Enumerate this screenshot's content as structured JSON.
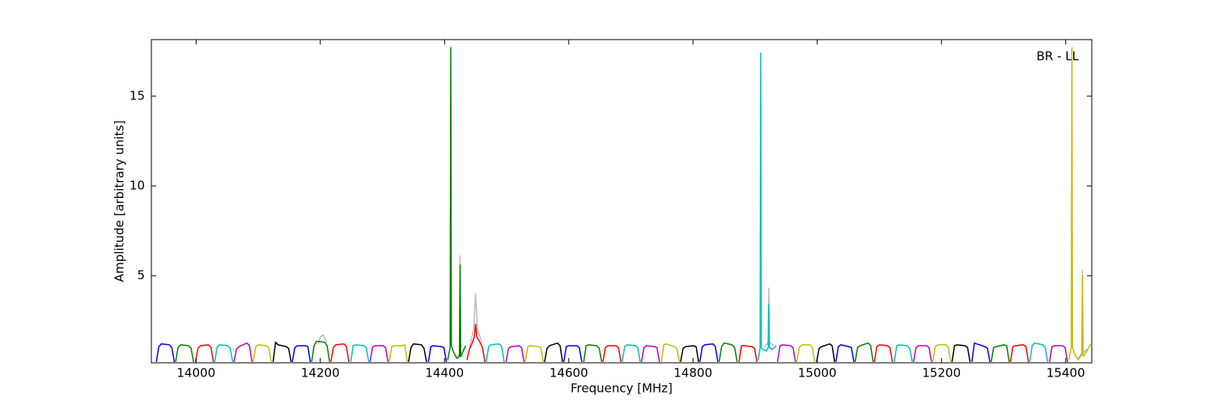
{
  "chart_data": {
    "type": "line",
    "xlabel": "Frequency [MHz]",
    "ylabel": "Amplitude [arbitrary units]",
    "annotation": "BR - LL",
    "xlim": [
      13928,
      15442
    ],
    "xticks": [
      14000,
      14200,
      14400,
      14600,
      14800,
      15000,
      15200,
      15400
    ],
    "ylim": [
      0.15,
      18.15
    ],
    "yticks": [
      5,
      10,
      15
    ],
    "grid": false,
    "series": [
      {
        "color": "#bbbbbb",
        "x": [
          14420,
          14424,
          14425,
          14426,
          14430
        ],
        "values": [
          0.5,
          0.6,
          6.1,
          0.6,
          0.5
        ]
      },
      {
        "color": "#bbbbbb",
        "x": [
          14440,
          14447,
          14450,
          14453,
          14460
        ],
        "values": [
          1.0,
          2.0,
          4.0,
          2.0,
          1.3
        ]
      },
      {
        "color": "#bbbbbb",
        "x": [
          14915,
          14921,
          14922,
          14923,
          14930
        ],
        "values": [
          1.0,
          1.3,
          4.3,
          1.3,
          1.1
        ]
      },
      {
        "color": "#bbbbbb",
        "x": [
          15420,
          15426,
          15427,
          15428,
          15434
        ],
        "values": [
          0.4,
          0.7,
          5.3,
          0.7,
          0.9
        ]
      },
      {
        "color": "#bbbbbb",
        "x": [
          14197,
          14200,
          14205,
          14210
        ],
        "values": [
          1.2,
          1.6,
          1.7,
          1.3
        ]
      },
      {
        "color": "#0000ff",
        "x": [
          13936,
          13940,
          13944,
          13957,
          13961,
          13965
        ],
        "values": [
          0.2,
          1.05,
          1.2,
          1.15,
          1.0,
          0.2
        ]
      },
      {
        "color": "#008000",
        "x": [
          13967,
          13971,
          13975,
          13988,
          13992,
          13996
        ],
        "values": [
          0.2,
          1.0,
          1.15,
          1.1,
          0.95,
          0.2
        ]
      },
      {
        "color": "#ff0000",
        "x": [
          13999,
          14003,
          14007,
          14020,
          14024,
          14028
        ],
        "values": [
          0.2,
          0.95,
          1.1,
          1.15,
          1.0,
          0.2
        ]
      },
      {
        "color": "#00bfbf",
        "x": [
          14030,
          14034,
          14038,
          14051,
          14055,
          14059
        ],
        "values": [
          0.2,
          1.05,
          1.15,
          1.1,
          0.95,
          0.2
        ]
      },
      {
        "color": "#bf00bf",
        "x": [
          14061,
          14065,
          14069,
          14082,
          14086,
          14090
        ],
        "values": [
          0.2,
          0.9,
          1.05,
          1.25,
          1.1,
          0.2
        ]
      },
      {
        "color": "#bfbf00",
        "x": [
          14092,
          14096,
          14100,
          14113,
          14117,
          14121
        ],
        "values": [
          0.2,
          1.05,
          1.15,
          1.1,
          1.0,
          0.2
        ]
      },
      {
        "color": "#000000",
        "x": [
          14124,
          14128,
          14132,
          14145,
          14149,
          14153
        ],
        "values": [
          0.2,
          1.3,
          1.15,
          1.05,
          0.95,
          0.2
        ]
      },
      {
        "color": "#0000ff",
        "x": [
          14155,
          14159,
          14163,
          14176,
          14180,
          14184
        ],
        "values": [
          0.2,
          1.0,
          1.1,
          1.1,
          1.05,
          0.2
        ]
      },
      {
        "color": "#008000",
        "x": [
          14186,
          14190,
          14194,
          14207,
          14211,
          14215
        ],
        "values": [
          0.2,
          1.1,
          1.35,
          1.3,
          1.1,
          0.2
        ]
      },
      {
        "color": "#ff0000",
        "x": [
          14217,
          14221,
          14225,
          14238,
          14242,
          14246
        ],
        "values": [
          0.2,
          1.0,
          1.15,
          1.2,
          1.05,
          0.2
        ]
      },
      {
        "color": "#00bfbf",
        "x": [
          14249,
          14253,
          14257,
          14270,
          14274,
          14278
        ],
        "values": [
          0.2,
          1.1,
          1.15,
          1.1,
          1.0,
          0.2
        ]
      },
      {
        "color": "#bf00bf",
        "x": [
          14280,
          14284,
          14288,
          14301,
          14305,
          14309
        ],
        "values": [
          0.2,
          1.0,
          1.1,
          1.1,
          1.0,
          0.2
        ]
      },
      {
        "color": "#bfbf00",
        "x": [
          14311,
          14315,
          14319,
          14332,
          14336,
          14340
        ],
        "values": [
          0.2,
          1.05,
          1.1,
          1.1,
          1.15,
          0.2
        ]
      },
      {
        "color": "#000000",
        "x": [
          14342,
          14346,
          14350,
          14363,
          14367,
          14371
        ],
        "values": [
          0.2,
          1.0,
          1.2,
          1.15,
          0.95,
          0.2
        ]
      },
      {
        "color": "#0000ff",
        "x": [
          14374,
          14378,
          14382,
          14395,
          14399,
          14403
        ],
        "values": [
          0.2,
          1.05,
          1.1,
          1.05,
          1.0,
          0.2
        ]
      },
      {
        "color": "#008000",
        "x": [
          14405,
          14409,
          14410,
          14411,
          14415,
          14420,
          14424,
          14425,
          14426,
          14430,
          14434
        ],
        "values": [
          0.3,
          1.0,
          17.7,
          1.1,
          0.7,
          0.4,
          0.5,
          5.6,
          0.5,
          0.8,
          1.1
        ]
      },
      {
        "color": "#ff0000",
        "x": [
          14436,
          14440,
          14444,
          14448,
          14450,
          14452,
          14457,
          14461,
          14465
        ],
        "values": [
          0.3,
          0.9,
          1.2,
          1.6,
          2.3,
          1.6,
          1.3,
          1.0,
          0.2
        ]
      },
      {
        "color": "#00bfbf",
        "x": [
          14467,
          14471,
          14475,
          14488,
          14492,
          14496
        ],
        "values": [
          0.2,
          1.05,
          1.15,
          1.2,
          1.05,
          0.2
        ]
      },
      {
        "color": "#bf00bf",
        "x": [
          14499,
          14503,
          14507,
          14520,
          14524,
          14528
        ],
        "values": [
          0.2,
          0.95,
          1.05,
          1.1,
          1.0,
          0.2
        ]
      },
      {
        "color": "#bfbf00",
        "x": [
          14530,
          14534,
          14538,
          14551,
          14555,
          14559
        ],
        "values": [
          0.2,
          1.05,
          1.1,
          1.05,
          1.0,
          0.2
        ]
      },
      {
        "color": "#000000",
        "x": [
          14561,
          14565,
          14569,
          14582,
          14586,
          14590
        ],
        "values": [
          0.2,
          0.95,
          1.1,
          1.25,
          1.1,
          0.2
        ]
      },
      {
        "color": "#0000ff",
        "x": [
          14592,
          14596,
          14600,
          14613,
          14617,
          14621
        ],
        "values": [
          0.2,
          1.05,
          1.1,
          1.1,
          1.0,
          0.2
        ]
      },
      {
        "color": "#008000",
        "x": [
          14624,
          14628,
          14632,
          14645,
          14649,
          14653
        ],
        "values": [
          0.2,
          1.1,
          1.15,
          1.1,
          0.95,
          0.2
        ]
      },
      {
        "color": "#ff0000",
        "x": [
          14655,
          14659,
          14663,
          14676,
          14680,
          14684
        ],
        "values": [
          0.2,
          1.0,
          1.1,
          1.1,
          1.0,
          0.2
        ]
      },
      {
        "color": "#00bfbf",
        "x": [
          14686,
          14690,
          14694,
          14707,
          14711,
          14715
        ],
        "values": [
          0.2,
          1.05,
          1.15,
          1.1,
          1.0,
          0.2
        ]
      },
      {
        "color": "#bf00bf",
        "x": [
          14717,
          14721,
          14725,
          14738,
          14742,
          14746
        ],
        "values": [
          0.2,
          1.0,
          1.1,
          1.05,
          1.0,
          0.2
        ]
      },
      {
        "color": "#bfbf00",
        "x": [
          14749,
          14753,
          14757,
          14770,
          14774,
          14778
        ],
        "values": [
          0.2,
          1.15,
          1.2,
          1.05,
          0.95,
          0.2
        ]
      },
      {
        "color": "#000000",
        "x": [
          14780,
          14784,
          14788,
          14801,
          14805,
          14809
        ],
        "values": [
          0.2,
          0.95,
          1.05,
          1.1,
          1.05,
          0.2
        ]
      },
      {
        "color": "#0000ff",
        "x": [
          14811,
          14815,
          14819,
          14832,
          14836,
          14840
        ],
        "values": [
          0.2,
          1.05,
          1.15,
          1.2,
          1.05,
          0.2
        ]
      },
      {
        "color": "#008000",
        "x": [
          14842,
          14846,
          14850,
          14863,
          14867,
          14871
        ],
        "values": [
          0.2,
          1.05,
          1.25,
          1.15,
          1.0,
          0.2
        ]
      },
      {
        "color": "#ff0000",
        "x": [
          14874,
          14878,
          14882,
          14895,
          14899,
          14903
        ],
        "values": [
          0.2,
          1.1,
          1.1,
          1.05,
          0.95,
          0.2
        ]
      },
      {
        "color": "#00bfbf",
        "x": [
          14905,
          14908,
          14909,
          14910,
          14912,
          14918,
          14921,
          14922,
          14923,
          14928,
          14934
        ],
        "values": [
          0.3,
          1.0,
          17.4,
          1.0,
          0.9,
          0.8,
          1.0,
          3.4,
          1.0,
          0.9,
          1.1
        ]
      },
      {
        "color": "#bf00bf",
        "x": [
          14936,
          14940,
          14944,
          14957,
          14961,
          14965
        ],
        "values": [
          0.2,
          1.1,
          1.15,
          1.1,
          1.0,
          0.2
        ]
      },
      {
        "color": "#bfbf00",
        "x": [
          14967,
          14971,
          14975,
          14988,
          14992,
          14996
        ],
        "values": [
          0.2,
          1.0,
          1.15,
          1.15,
          1.0,
          0.2
        ]
      },
      {
        "color": "#000000",
        "x": [
          14999,
          15003,
          15007,
          15020,
          15024,
          15028
        ],
        "values": [
          0.2,
          0.95,
          1.05,
          1.2,
          1.1,
          0.2
        ]
      },
      {
        "color": "#0000ff",
        "x": [
          15030,
          15034,
          15038,
          15051,
          15055,
          15059
        ],
        "values": [
          0.2,
          1.05,
          1.15,
          1.05,
          1.0,
          0.2
        ]
      },
      {
        "color": "#008000",
        "x": [
          15061,
          15065,
          15069,
          15082,
          15086,
          15090
        ],
        "values": [
          0.2,
          1.0,
          1.1,
          1.25,
          1.1,
          0.2
        ]
      },
      {
        "color": "#ff0000",
        "x": [
          15092,
          15096,
          15100,
          15113,
          15117,
          15121
        ],
        "values": [
          0.2,
          1.05,
          1.15,
          1.1,
          1.0,
          0.2
        ]
      },
      {
        "color": "#00bfbf",
        "x": [
          15124,
          15128,
          15132,
          15145,
          15149,
          15153
        ],
        "values": [
          0.2,
          1.1,
          1.15,
          1.1,
          0.95,
          0.2
        ]
      },
      {
        "color": "#bf00bf",
        "x": [
          15155,
          15159,
          15163,
          15176,
          15180,
          15184
        ],
        "values": [
          0.2,
          1.0,
          1.1,
          1.1,
          1.0,
          0.2
        ]
      },
      {
        "color": "#bfbf00",
        "x": [
          15186,
          15190,
          15194,
          15207,
          15211,
          15215
        ],
        "values": [
          0.2,
          1.05,
          1.15,
          1.15,
          1.0,
          0.2
        ]
      },
      {
        "color": "#000000",
        "x": [
          15217,
          15221,
          15225,
          15238,
          15242,
          15246
        ],
        "values": [
          0.2,
          1.1,
          1.15,
          1.1,
          1.0,
          0.2
        ]
      },
      {
        "color": "#0000ff",
        "x": [
          15249,
          15253,
          15257,
          15270,
          15274,
          15278
        ],
        "values": [
          0.2,
          1.25,
          1.2,
          1.05,
          0.95,
          0.2
        ]
      },
      {
        "color": "#008000",
        "x": [
          15280,
          15284,
          15288,
          15301,
          15305,
          15309
        ],
        "values": [
          0.2,
          1.0,
          1.05,
          1.15,
          1.1,
          0.2
        ]
      },
      {
        "color": "#ff0000",
        "x": [
          15311,
          15315,
          15319,
          15332,
          15336,
          15340
        ],
        "values": [
          0.2,
          1.05,
          1.1,
          1.15,
          1.05,
          0.2
        ]
      },
      {
        "color": "#00bfbf",
        "x": [
          15342,
          15346,
          15350,
          15363,
          15367,
          15371
        ],
        "values": [
          0.2,
          1.1,
          1.25,
          1.15,
          1.0,
          0.2
        ]
      },
      {
        "color": "#bf00bf",
        "x": [
          15374,
          15378,
          15382,
          15395,
          15399,
          15403
        ],
        "values": [
          0.2,
          1.05,
          1.1,
          1.1,
          1.0,
          0.2
        ]
      },
      {
        "color": "#bfbf00",
        "x": [
          15405,
          15409,
          15410,
          15411,
          15415,
          15420,
          15426,
          15427,
          15428,
          15434,
          15440
        ],
        "values": [
          0.3,
          1.0,
          17.7,
          1.0,
          0.6,
          0.3,
          0.6,
          5.0,
          0.5,
          0.8,
          1.2
        ]
      }
    ]
  }
}
